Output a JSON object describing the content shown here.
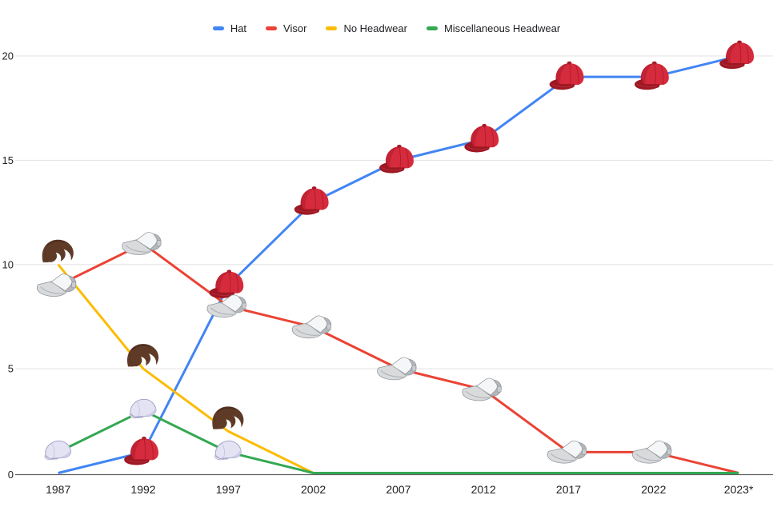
{
  "chart_data": {
    "type": "line",
    "title": "",
    "categories": [
      "1987",
      "1992",
      "1997",
      "2002",
      "2007",
      "2012",
      "2017",
      "2022",
      "2023*"
    ],
    "series": [
      {
        "name": "Hat",
        "color": "#4285F4",
        "marker": "red-cap",
        "values": [
          0,
          1,
          9,
          13,
          15,
          16,
          19,
          19,
          20
        ],
        "marker_indices": [
          1,
          2,
          3,
          4,
          5,
          6,
          7,
          8
        ]
      },
      {
        "name": "Visor",
        "color": "#EA4335",
        "marker": "gray-visor",
        "values": [
          9,
          11,
          8,
          7,
          5,
          4,
          1,
          1,
          0
        ],
        "marker_indices": [
          0,
          1,
          2,
          3,
          4,
          5,
          6,
          7
        ]
      },
      {
        "name": "No Headwear",
        "color": "#FBBC04",
        "marker": "brown-hair",
        "values": [
          10,
          5,
          2,
          0,
          0,
          0,
          0,
          0,
          0
        ],
        "marker_indices": [
          0,
          1,
          2
        ]
      },
      {
        "name": "Miscellaneous Headwear",
        "color": "#34A853",
        "marker": "white-cap",
        "values": [
          1,
          3,
          1,
          0,
          0,
          0,
          0,
          0,
          0
        ],
        "marker_indices": [
          0,
          1,
          2
        ]
      }
    ],
    "xlabel": "",
    "ylabel": "",
    "ylim": [
      0,
      20
    ],
    "yticks": [
      0,
      5,
      10,
      15,
      20
    ],
    "grid": true,
    "legend_position": "top",
    "gridline_color": "#E3E3E3",
    "axis_line_color": "#616161"
  }
}
